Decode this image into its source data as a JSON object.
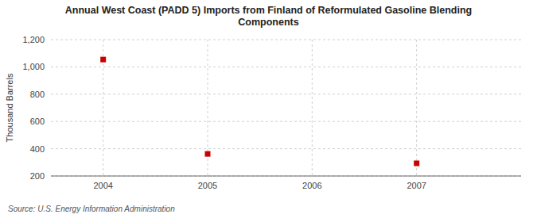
{
  "chart_data": {
    "type": "scatter",
    "title": "Annual West Coast (PADD 5) Imports from Finland of Reformulated Gasoline Blending\nComponents",
    "ylabel": "Thousand Barrels",
    "source": "Source: U.S. Energy Information Administration",
    "x": [
      2004,
      2005,
      2006,
      2007
    ],
    "values": [
      1054,
      362,
      null,
      293
    ],
    "color": "#cc0000",
    "marker": "square",
    "xlim": [
      2003.5,
      2008.0
    ],
    "ylim": [
      200,
      1200
    ],
    "xticks": [
      2004,
      2005,
      2006,
      2007
    ],
    "yticks": [
      200,
      400,
      600,
      800,
      {
        "value": 1000,
        "label": "1,000"
      },
      {
        "value": 1200,
        "label": "1,200"
      }
    ],
    "grid": true
  }
}
